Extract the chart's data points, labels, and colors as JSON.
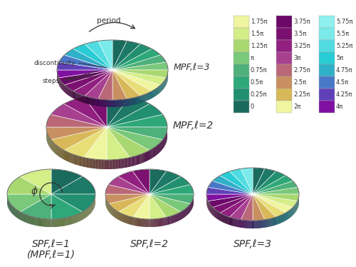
{
  "bg_color": "#f0f0f0",
  "text_color": "#333333",
  "cmap1": [
    "#1a6b5e",
    "#1d7a67",
    "#229070",
    "#2ea878",
    "#4eb07a",
    "#7ac87a",
    "#aad870",
    "#d4ee88",
    "#f0f5a0"
  ],
  "cmap2": [
    "#f0f5a0",
    "#e8de78",
    "#d8b858",
    "#c89060",
    "#ba6878",
    "#a84090",
    "#922080",
    "#7b1070",
    "#6b0868"
  ],
  "cmap3": [
    "#6b0868",
    "#8010a0",
    "#6040b8",
    "#4878c8",
    "#30b0c8",
    "#28ccd4",
    "#50dce0",
    "#7aeaea",
    "#90f0f0"
  ],
  "col1_colors_top_to_bot": [
    "#f0f5a0",
    "#d4ee88",
    "#aad870",
    "#7ac87a",
    "#4eb07a",
    "#2ea878",
    "#229070",
    "#1a6b5e"
  ],
  "col2_colors_top_to_bot": [
    "#6b0868",
    "#7b1070",
    "#922080",
    "#a84090",
    "#ba6878",
    "#c89060",
    "#d8b858",
    "#f0f5a0"
  ],
  "col3_colors_top_to_bot": [
    "#90f0f0",
    "#7aeaea",
    "#50dce0",
    "#28ccd4",
    "#30b0c8",
    "#4878c8",
    "#6040b8",
    "#8010a0"
  ],
  "col1_labels": [
    "1.75π",
    "1.5π",
    "1.25π",
    "π",
    "0.75π",
    "0.5π",
    "0.25π",
    "0"
  ],
  "col2_labels": [
    "3.75π",
    "3.5π",
    "3.25π",
    "3π",
    "2.75π",
    "2.5π",
    "2.25π",
    "2π"
  ],
  "col3_labels": [
    "5.75π",
    "5.5π",
    "5.25π",
    "5π",
    "4.75π",
    "4.5π",
    "4.25π",
    "4π"
  ]
}
